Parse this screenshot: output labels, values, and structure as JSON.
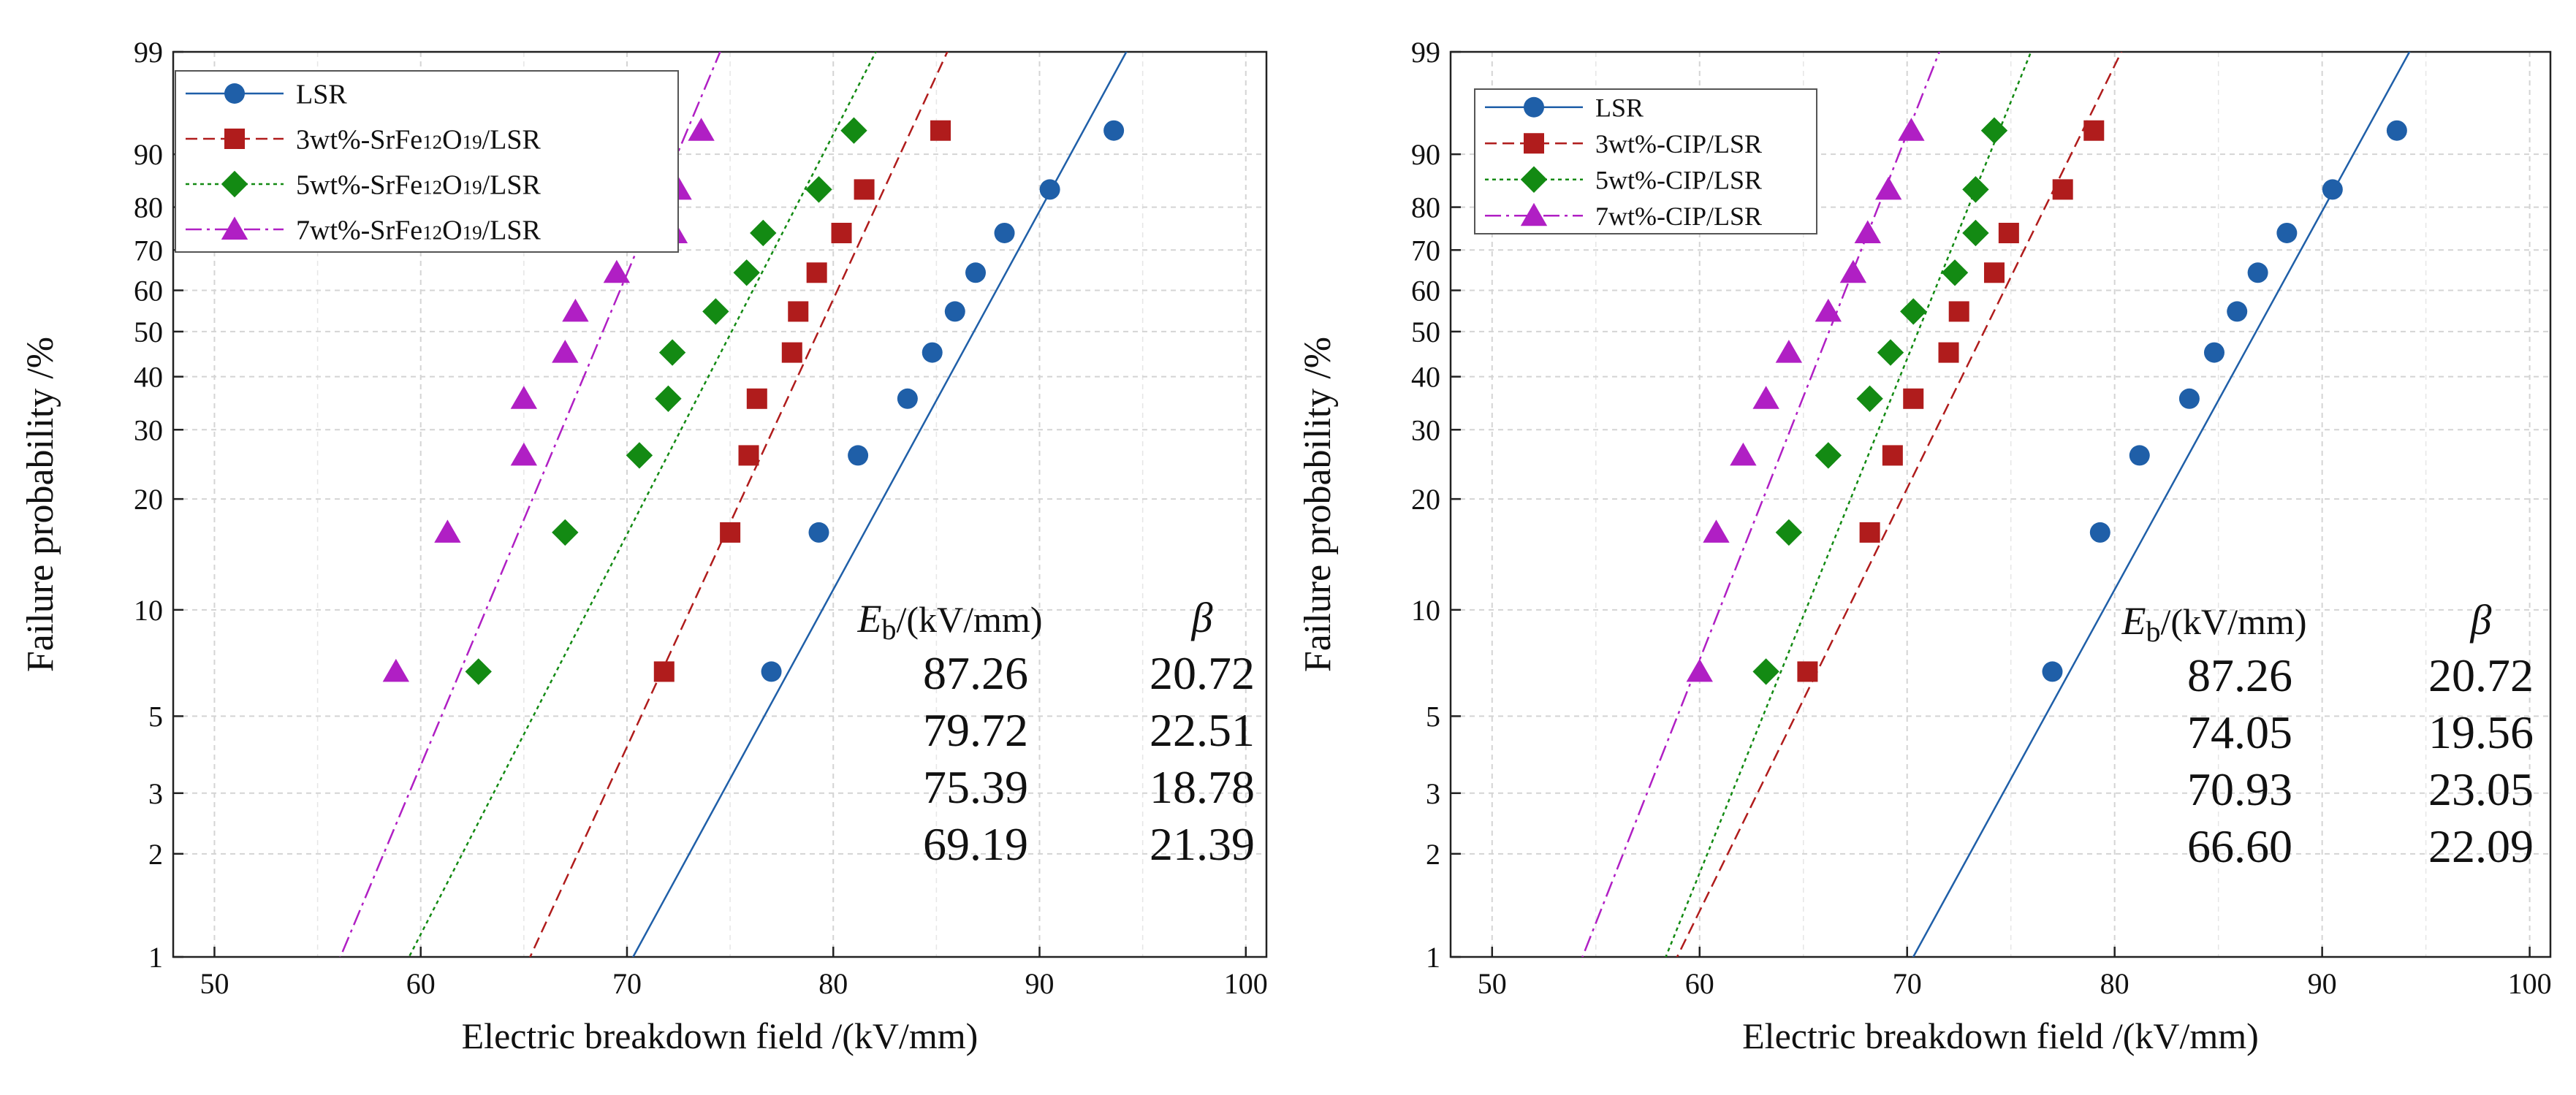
{
  "chart_data": [
    {
      "type": "scatter",
      "scale": "weibull",
      "xlabel": "Electric breakdown field /(kV/mm)",
      "ylabel": "Failure probability /%",
      "xlim": [
        48,
        101
      ],
      "ylim": [
        1,
        99
      ],
      "x_ticks": [
        50,
        60,
        70,
        80,
        90,
        100
      ],
      "y_ticks": [
        1,
        2,
        3,
        5,
        10,
        20,
        30,
        40,
        50,
        60,
        70,
        80,
        90,
        99
      ],
      "grid": true,
      "legend_position": "top-left",
      "table": {
        "header_eb_main": "E",
        "header_eb_sub": "b",
        "header_eb_unit": "/(kV/mm)",
        "header_beta": "β",
        "rows": [
          [
            "87.26",
            "20.72"
          ],
          [
            "79.72",
            "22.51"
          ],
          [
            "75.39",
            "18.78"
          ],
          [
            "69.19",
            "21.39"
          ]
        ]
      },
      "series": [
        {
          "name_parts": [
            "LSR"
          ],
          "color": "#1f5fa8",
          "marker": "circle",
          "line_style": "solid",
          "eta": 87.26,
          "beta": 20.72,
          "points": [
            [
              77.0,
              6.7
            ],
            [
              79.3,
              16.3
            ],
            [
              81.2,
              25.9
            ],
            [
              83.6,
              35.6
            ],
            [
              84.8,
              45.2
            ],
            [
              85.9,
              54.8
            ],
            [
              86.9,
              64.4
            ],
            [
              88.3,
              74.1
            ],
            [
              90.5,
              83.7
            ],
            [
              93.6,
              93.3
            ]
          ]
        },
        {
          "name_parts": [
            "3wt%-SrFe",
            "12",
            "O",
            "19",
            "/LSR"
          ],
          "color": "#b01c1c",
          "marker": "square",
          "line_style": "dashed",
          "eta": 79.72,
          "beta": 22.51,
          "points": [
            [
              71.8,
              6.7
            ],
            [
              75.0,
              16.3
            ],
            [
              75.9,
              25.9
            ],
            [
              76.3,
              35.6
            ],
            [
              78.0,
              45.2
            ],
            [
              78.3,
              54.8
            ],
            [
              79.2,
              64.4
            ],
            [
              80.4,
              74.1
            ],
            [
              81.5,
              83.7
            ],
            [
              85.2,
              93.3
            ]
          ]
        },
        {
          "name_parts": [
            "5wt%-SrFe",
            "12",
            "O",
            "19",
            "/LSR"
          ],
          "color": "#138a13",
          "marker": "diamond",
          "line_style": "dotted",
          "eta": 75.39,
          "beta": 18.78,
          "points": [
            [
              62.8,
              6.7
            ],
            [
              67.0,
              16.3
            ],
            [
              70.6,
              25.9
            ],
            [
              72.0,
              35.6
            ],
            [
              72.2,
              45.2
            ],
            [
              74.3,
              54.8
            ],
            [
              75.8,
              64.4
            ],
            [
              76.6,
              74.1
            ],
            [
              79.3,
              83.7
            ],
            [
              81.0,
              93.3
            ]
          ]
        },
        {
          "name_parts": [
            "7wt%-SrFe",
            "12",
            "O",
            "19",
            "/LSR"
          ],
          "color": "#b01fc4",
          "marker": "triangle",
          "line_style": "dashdot",
          "eta": 69.19,
          "beta": 21.39,
          "points": [
            [
              58.8,
              6.7
            ],
            [
              61.3,
              16.3
            ],
            [
              65.0,
              25.9
            ],
            [
              65.0,
              35.6
            ],
            [
              67.0,
              45.2
            ],
            [
              67.5,
              54.8
            ],
            [
              69.5,
              64.4
            ],
            [
              72.3,
              74.1
            ],
            [
              72.5,
              83.7
            ],
            [
              73.6,
              93.3
            ]
          ]
        }
      ]
    },
    {
      "type": "scatter",
      "scale": "weibull",
      "xlabel": "Electric breakdown field /(kV/mm)",
      "ylabel": "Failure probability /%",
      "xlim": [
        48,
        101
      ],
      "ylim": [
        1,
        99
      ],
      "x_ticks": [
        50,
        60,
        70,
        80,
        90,
        100
      ],
      "y_ticks": [
        1,
        2,
        3,
        5,
        10,
        20,
        30,
        40,
        50,
        60,
        70,
        80,
        90,
        99
      ],
      "grid": true,
      "legend_position": "top-left",
      "table": {
        "header_eb_main": "E",
        "header_eb_sub": "b",
        "header_eb_unit": "/(kV/mm)",
        "header_beta": "β",
        "rows": [
          [
            "87.26",
            "20.72"
          ],
          [
            "74.05",
            "19.56"
          ],
          [
            "70.93",
            "23.05"
          ],
          [
            "66.60",
            "22.09"
          ]
        ]
      },
      "series": [
        {
          "name_parts": [
            "LSR"
          ],
          "color": "#1f5fa8",
          "marker": "circle",
          "line_style": "solid",
          "eta": 87.26,
          "beta": 20.72,
          "points": [
            [
              77.0,
              6.7
            ],
            [
              79.3,
              16.3
            ],
            [
              81.2,
              25.9
            ],
            [
              83.6,
              35.6
            ],
            [
              84.8,
              45.2
            ],
            [
              85.9,
              54.8
            ],
            [
              86.9,
              64.4
            ],
            [
              88.3,
              74.1
            ],
            [
              90.5,
              83.7
            ],
            [
              93.6,
              93.3
            ]
          ]
        },
        {
          "name_parts": [
            "3wt%-CIP/LSR"
          ],
          "color": "#b01c1c",
          "marker": "square",
          "line_style": "dashed",
          "eta": 74.05,
          "beta": 19.56,
          "points": [
            [
              65.2,
              6.7
            ],
            [
              68.2,
              16.3
            ],
            [
              69.3,
              25.9
            ],
            [
              70.3,
              35.6
            ],
            [
              72.0,
              45.2
            ],
            [
              72.5,
              54.8
            ],
            [
              74.2,
              64.4
            ],
            [
              74.9,
              74.1
            ],
            [
              77.5,
              83.7
            ],
            [
              79.0,
              93.3
            ]
          ]
        },
        {
          "name_parts": [
            "5wt%-CIP/LSR"
          ],
          "color": "#138a13",
          "marker": "diamond",
          "line_style": "dotted",
          "eta": 70.93,
          "beta": 23.05,
          "points": [
            [
              63.2,
              6.7
            ],
            [
              64.3,
              16.3
            ],
            [
              66.2,
              25.9
            ],
            [
              68.2,
              35.6
            ],
            [
              69.2,
              45.2
            ],
            [
              70.3,
              54.8
            ],
            [
              72.3,
              64.4
            ],
            [
              73.3,
              74.1
            ],
            [
              73.3,
              83.7
            ],
            [
              74.2,
              93.3
            ]
          ]
        },
        {
          "name_parts": [
            "7wt%-CIP/LSR"
          ],
          "color": "#b01fc4",
          "marker": "triangle",
          "line_style": "dashdot",
          "eta": 66.6,
          "beta": 22.09,
          "points": [
            [
              60.0,
              6.7
            ],
            [
              60.8,
              16.3
            ],
            [
              62.1,
              25.9
            ],
            [
              63.2,
              35.6
            ],
            [
              64.3,
              45.2
            ],
            [
              66.2,
              54.8
            ],
            [
              67.4,
              64.4
            ],
            [
              68.1,
              74.1
            ],
            [
              69.1,
              83.7
            ],
            [
              70.2,
              93.3
            ]
          ]
        }
      ]
    }
  ]
}
